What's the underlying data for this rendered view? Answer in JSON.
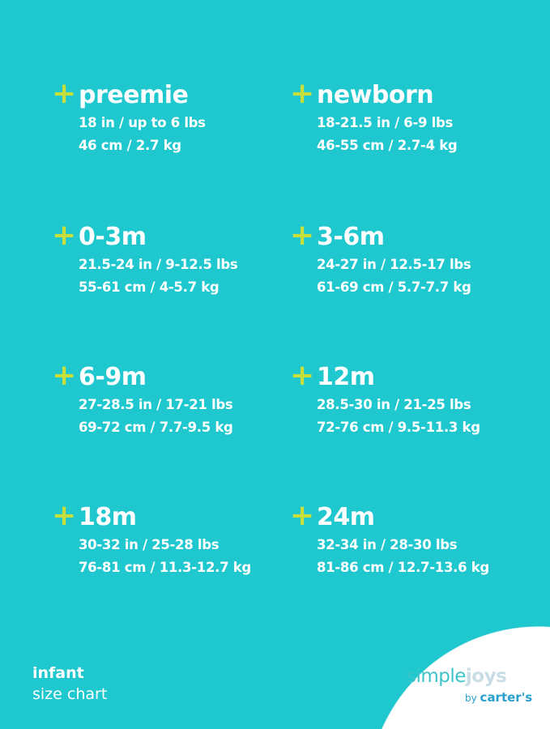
{
  "colors": {
    "background": "#1fc7cf",
    "accent_plus": "#c6df3b",
    "text": "#ffffff"
  },
  "sizes": [
    {
      "title": "preemie",
      "imperial": "18 in / up to 6 lbs",
      "metric": "46 cm / 2.7 kg"
    },
    {
      "title": "newborn",
      "imperial": "18-21.5 in / 6-9 lbs",
      "metric": "46-55 cm / 2.7-4 kg"
    },
    {
      "title": "0-3m",
      "imperial": "21.5-24 in / 9-12.5 lbs",
      "metric": "55-61 cm / 4-5.7 kg"
    },
    {
      "title": "3-6m",
      "imperial": "24-27 in / 12.5-17 lbs",
      "metric": "61-69 cm / 5.7-7.7 kg"
    },
    {
      "title": "6-9m",
      "imperial": "27-28.5 in / 17-21 lbs",
      "metric": "69-72 cm / 7.7-9.5 kg"
    },
    {
      "title": "12m",
      "imperial": "28.5-30 in / 21-25 lbs",
      "metric": "72-76 cm / 9.5-11.3 kg"
    },
    {
      "title": "18m",
      "imperial": "30-32 in / 25-28 lbs",
      "metric": "76-81 cm / 11.3-12.7 kg"
    },
    {
      "title": "24m",
      "imperial": "32-34 in / 28-30 lbs",
      "metric": "81-86 cm / 12.7-13.6 kg"
    }
  ],
  "plus_symbol": "+",
  "footer": {
    "line1": "infant",
    "line2": "size chart"
  },
  "logo": {
    "simple": "simple",
    "joys": "joys",
    "by": "by",
    "brand": "carter's"
  }
}
